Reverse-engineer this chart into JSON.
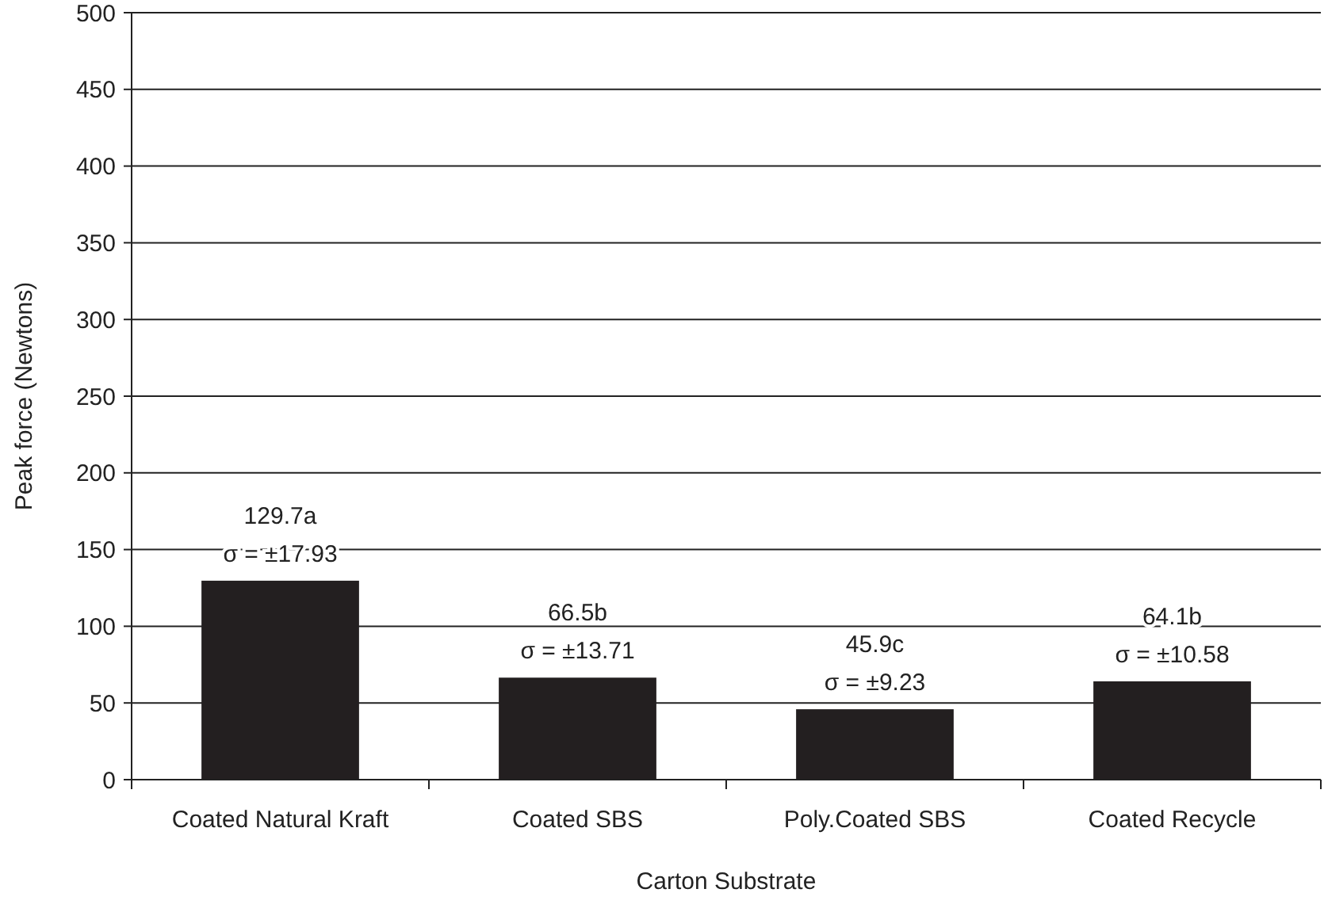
{
  "chart_data": {
    "type": "bar",
    "xlabel": "Carton Substrate",
    "ylabel": "Peak force (Newtons)",
    "categories": [
      "Coated Natural Kraft",
      "Coated SBS",
      "Poly.Coated SBS",
      "Coated Recycle"
    ],
    "values": [
      129.7,
      66.5,
      45.9,
      64.1
    ],
    "color": "#231f20",
    "value_labels": [
      "129.7a",
      "66.5b",
      "45.9c",
      "64.1b"
    ],
    "annotations": [
      {
        "text": "σ = ±17.93",
        "x": "Coated Natural Kraft",
        "y": 129.7
      },
      {
        "text": "σ = ±13.71",
        "x": "Coated SBS",
        "y": 66.5
      },
      {
        "text": "σ = ±9.23",
        "x": "Poly.Coated SBS",
        "y": 45.9
      },
      {
        "text": "σ = ±10.58",
        "x": "Coated Recycle",
        "y": 64.1
      }
    ],
    "ylim": [
      0,
      500
    ],
    "yticks": [
      0,
      50,
      100,
      150,
      200,
      250,
      300,
      350,
      400,
      450,
      500
    ],
    "grid": "y"
  }
}
